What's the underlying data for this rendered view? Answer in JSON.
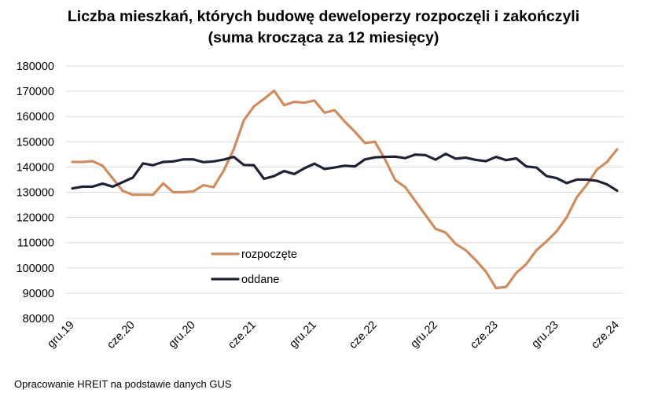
{
  "chart_data": {
    "type": "line",
    "title": "Liczba mieszkań, których budowę deweloperzy rozpoczęli i zakończyli",
    "subtitle": "(suma krocząca za 12 miesięcy)",
    "xlabel": "",
    "ylabel": "",
    "ylim": [
      80000,
      180000
    ],
    "yticks": [
      80000,
      90000,
      100000,
      110000,
      120000,
      130000,
      140000,
      150000,
      160000,
      170000,
      180000
    ],
    "x_start": "gru.19",
    "x_end": "cze.24",
    "xtick_labels": [
      "gru.19",
      "cze.20",
      "gru.20",
      "cze.21",
      "gru.21",
      "cze.22",
      "gru.22",
      "cze.23",
      "gru.23",
      "cze.24"
    ],
    "grid": true,
    "legend_placement": "center-left",
    "series": [
      {
        "name": "rozpoczęte",
        "color": "#D08C5C",
        "values": [
          142000,
          142000,
          142300,
          140500,
          135500,
          130500,
          129000,
          129000,
          129000,
          133500,
          130000,
          130000,
          130300,
          132800,
          132000,
          138500,
          147000,
          158500,
          164000,
          167000,
          170200,
          164500,
          165800,
          165500,
          166300,
          161500,
          162500,
          158000,
          154000,
          149500,
          150000,
          143000,
          134800,
          132000,
          126500,
          121000,
          115500,
          114000,
          109500,
          107000,
          103000,
          98500,
          92000,
          92500,
          98000,
          101500,
          107000,
          110500,
          114500,
          120000,
          128000,
          133000,
          139000,
          142000,
          147000
        ]
      },
      {
        "name": "oddane",
        "color": "#1E2234",
        "values": [
          131500,
          132200,
          132200,
          133400,
          132200,
          134000,
          135800,
          141400,
          140700,
          142000,
          142200,
          143000,
          143000,
          141900,
          142200,
          142900,
          144000,
          140800,
          140700,
          135300,
          136400,
          138400,
          137200,
          139500,
          141300,
          139200,
          139800,
          140500,
          140200,
          143000,
          143800,
          144000,
          144100,
          143500,
          144900,
          144700,
          142900,
          145200,
          143300,
          143700,
          142800,
          142300,
          144000,
          142700,
          143400,
          140200,
          139800,
          136400,
          135600,
          133600,
          135000,
          135000,
          134500,
          133100,
          130600
        ]
      }
    ]
  },
  "footer": {
    "source": "Opracowanie HREIT na podstawie danych GUS"
  }
}
